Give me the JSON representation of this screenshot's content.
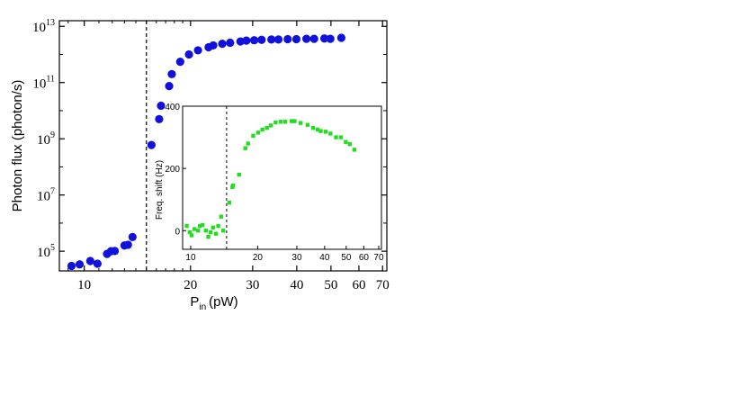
{
  "chart_data": [
    {
      "type": "scatter",
      "xscale": "log",
      "yscale": "log",
      "xlabel": "P",
      "xlabel_sub": "in",
      "xlabel_unit": "(pW)",
      "ylabel": "Photon flux (photon/s)",
      "xlim": [
        8.5,
        72
      ],
      "ylim_log10": [
        4.3,
        13.2
      ],
      "xticks": [
        10,
        20,
        30,
        40,
        50,
        60,
        70
      ],
      "xtick_labels": [
        "10",
        "20",
        "30",
        "40",
        "50",
        "60",
        "70"
      ],
      "yticks_log10": [
        5,
        7,
        9,
        11,
        13
      ],
      "ytick_labels": [
        {
          "base": "10",
          "exp": "5"
        },
        {
          "base": "10",
          "exp": "7"
        },
        {
          "base": "10",
          "exp": "9"
        },
        {
          "base": "10",
          "exp": "11"
        },
        {
          "base": "10",
          "exp": "13"
        }
      ],
      "marker_color": "#1111dd",
      "threshold_x": 15.0,
      "series": [
        {
          "name": "Photon flux",
          "points": [
            [
              9.2,
              30000.0
            ],
            [
              9.7,
              34000.0
            ],
            [
              10.4,
              45000.0
            ],
            [
              10.9,
              36000.0
            ],
            [
              11.6,
              80000.0
            ],
            [
              11.9,
              100000.0
            ],
            [
              12.2,
              102000.0
            ],
            [
              13.0,
              160000.0
            ],
            [
              13.3,
              170000.0
            ],
            [
              13.7,
              320000.0
            ],
            [
              15.5,
              600000000.0
            ],
            [
              16.3,
              5000000000.0
            ],
            [
              16.5,
              15000000000.0
            ],
            [
              17.4,
              75000000000.0
            ],
            [
              17.7,
              200000000000.0
            ],
            [
              18.7,
              550000000000.0
            ],
            [
              19.8,
              1000000000000.0
            ],
            [
              21.0,
              1400000000000.0
            ],
            [
              22.5,
              1800000000000.0
            ],
            [
              23.2,
              2100000000000.0
            ],
            [
              24.6,
              2400000000000.0
            ],
            [
              25.9,
              2600000000000.0
            ],
            [
              27.7,
              2900000000000.0
            ],
            [
              28.8,
              3100000000000.0
            ],
            [
              30.3,
              3200000000000.0
            ],
            [
              31.8,
              3300000000000.0
            ],
            [
              33.9,
              3400000000000.0
            ],
            [
              35.5,
              3400000000000.0
            ],
            [
              37.7,
              3500000000000.0
            ],
            [
              39.9,
              3500000000000.0
            ],
            [
              42.6,
              3600000000000.0
            ],
            [
              44.8,
              3600000000000.0
            ],
            [
              47.9,
              3700000000000.0
            ],
            [
              49.8,
              3600000000000.0
            ],
            [
              53.5,
              3900000000000.0
            ]
          ]
        }
      ]
    },
    {
      "type": "scatter",
      "inset": true,
      "xscale": "log",
      "ylabel": "Freq. shift (Hz)",
      "xlim": [
        9.2,
        72
      ],
      "ylim": [
        -60,
        400
      ],
      "xticks": [
        10,
        20,
        30,
        40,
        50,
        60,
        70
      ],
      "xtick_labels": [
        "10",
        "20",
        "30",
        "40",
        "50",
        "60",
        "70"
      ],
      "yticks": [
        0,
        200,
        400
      ],
      "ytick_labels": [
        "0",
        "200",
        "400"
      ],
      "marker_color": "#22dd22",
      "threshold_x": 14.5,
      "series": [
        {
          "name": "Frequency shift",
          "points": [
            [
              9.6,
              15
            ],
            [
              9.9,
              -5
            ],
            [
              10.1,
              -15
            ],
            [
              10.4,
              5
            ],
            [
              10.8,
              0
            ],
            [
              11.0,
              15
            ],
            [
              11.3,
              18
            ],
            [
              11.7,
              0
            ],
            [
              12.0,
              -20
            ],
            [
              12.3,
              -5
            ],
            [
              12.6,
              10
            ],
            [
              13.0,
              -10
            ],
            [
              13.3,
              15
            ],
            [
              13.7,
              45
            ],
            [
              14.0,
              0
            ],
            [
              14.9,
              90
            ],
            [
              15.4,
              140
            ],
            [
              15.5,
              145
            ],
            [
              16.5,
              180
            ],
            [
              17.6,
              265
            ],
            [
              18.1,
              280
            ],
            [
              19.1,
              305
            ],
            [
              20.1,
              315
            ],
            [
              21.0,
              325
            ],
            [
              22.0,
              330
            ],
            [
              22.9,
              338
            ],
            [
              24.1,
              348
            ],
            [
              25.4,
              350
            ],
            [
              26.6,
              350
            ],
            [
              28.4,
              352
            ],
            [
              29.3,
              352
            ],
            [
              31.2,
              346
            ],
            [
              33.5,
              340
            ],
            [
              35.5,
              330
            ],
            [
              37.2,
              325
            ],
            [
              38.4,
              320
            ],
            [
              40.5,
              318
            ],
            [
              42.5,
              312
            ],
            [
              45.0,
              300
            ],
            [
              47.3,
              300
            ],
            [
              49.8,
              285
            ],
            [
              51.9,
              278
            ],
            [
              54.4,
              260
            ]
          ]
        }
      ]
    }
  ]
}
